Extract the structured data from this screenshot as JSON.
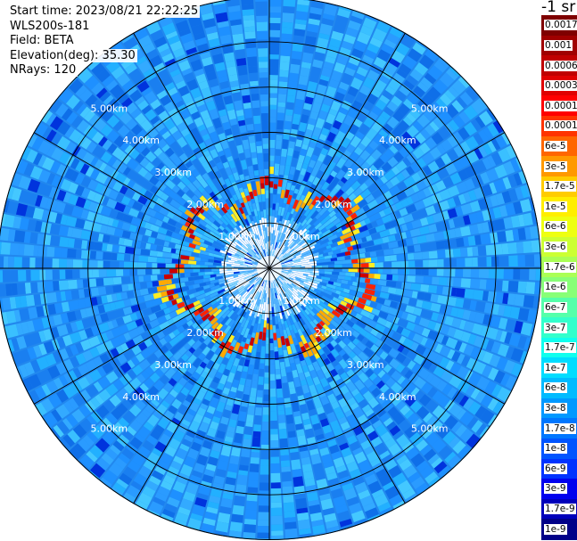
{
  "info": {
    "start_time": "Start time: 2023/08/21 22:22:25",
    "instrument": "WLS200s-181",
    "field": "Field: BETA",
    "elevation": "Elevation(deg): 35.30",
    "nrays": "NRays: 120"
  },
  "colorbar": {
    "unit_label": "-1 sr",
    "labels": [
      "0.0017",
      "0.001",
      "0.0006",
      "0.0003",
      "0.00017",
      "0.0001",
      "6e-5",
      "3e-5",
      "1.7e-5",
      "1e-5",
      "6e-6",
      "3e-6",
      "1.7e-6",
      "1e-6",
      "6e-7",
      "3e-7",
      "1.7e-7",
      "1e-7",
      "6e-8",
      "3e-8",
      "1.7e-8",
      "1e-8",
      "6e-9",
      "3e-9",
      "1.7e-9",
      "1e-9"
    ],
    "colors": [
      "#7f0000",
      "#a00000",
      "#c00000",
      "#e00000",
      "#ff0000",
      "#ff3300",
      "#ff6600",
      "#ff9900",
      "#ffcc00",
      "#ffee00",
      "#eeff11",
      "#ccff33",
      "#aaff55",
      "#88ff77",
      "#55ffaa",
      "#33ffcc",
      "#11ffee",
      "#00ddff",
      "#00bbff",
      "#0099ff",
      "#0077ff",
      "#0055ff",
      "#0033ff",
      "#0000ee",
      "#0000bb",
      "#000088"
    ]
  },
  "chart_data": {
    "type": "heatmap",
    "projection": "polar PPI scan",
    "field": "BETA",
    "units": "sr-1",
    "rings": [
      {
        "range_km": 1.0,
        "label": "1.00km"
      },
      {
        "range_km": 2.0,
        "label": "2.00km"
      },
      {
        "range_km": 3.0,
        "label": "3.00km"
      },
      {
        "range_km": 4.0,
        "label": "4.00km"
      },
      {
        "range_km": 5.0,
        "label": "5.00km"
      }
    ],
    "max_range_km": 6.0,
    "n_rays": 120,
    "spokes_deg": [
      0,
      30,
      60,
      90,
      120,
      150,
      180,
      210,
      240,
      270,
      300,
      330
    ],
    "background_beta": "3e-8",
    "range_labels_diagonals_only": true,
    "scale": "log",
    "color_range": [
      "1e-9",
      "0.0017"
    ],
    "aerosol_layer": {
      "range_km": [
        1.4,
        2.3
      ],
      "peak_beta": "0.0003",
      "note": "high backscatter ring between the 1.00km and 2.00km range rings"
    }
  }
}
